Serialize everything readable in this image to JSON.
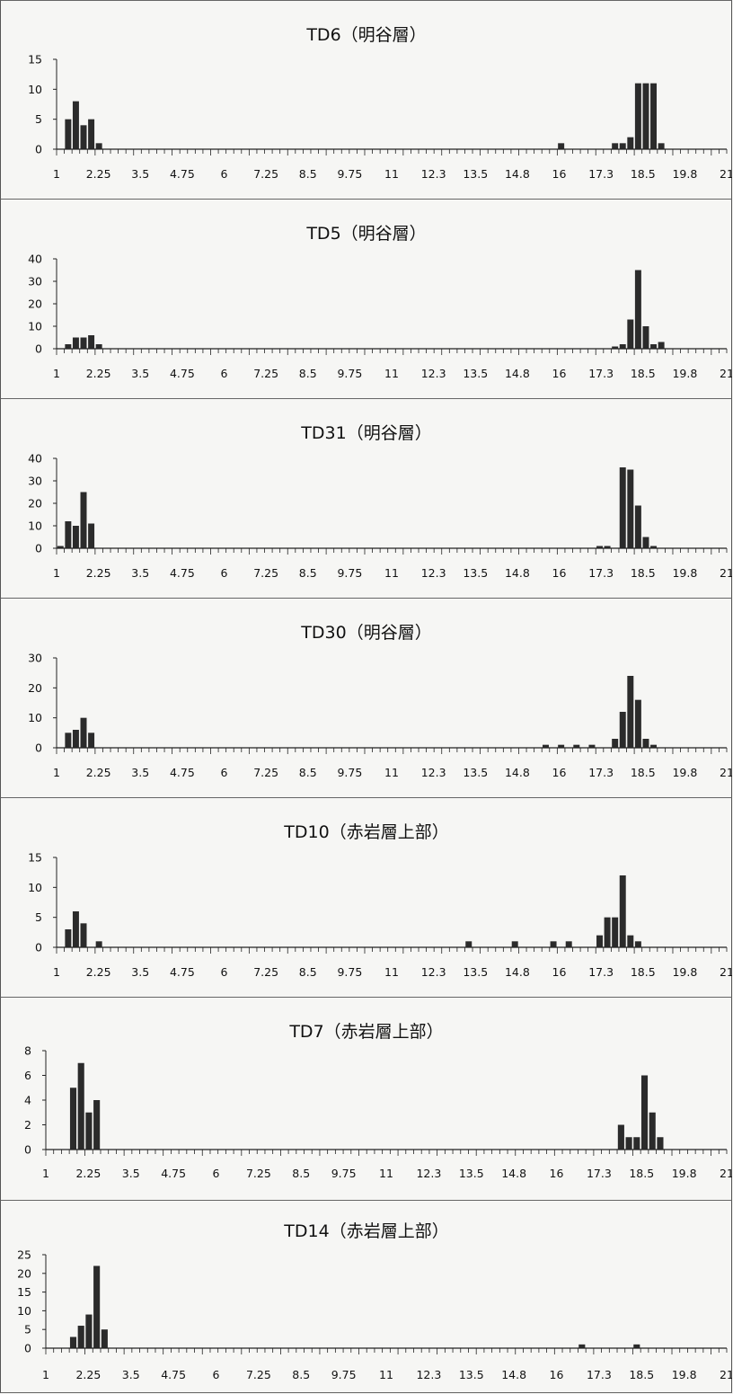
{
  "x_tick_labels": [
    "1",
    "2.25",
    "3.5",
    "4.75",
    "6",
    "7.25",
    "8.5",
    "9.75",
    "11",
    "12.3",
    "13.5",
    "14.8",
    "16",
    "17.3",
    "18.5",
    "19.8",
    "21"
  ],
  "colors": {
    "bar": "#2b2b2b",
    "axis": "#222222",
    "background": "#f6f6f4"
  },
  "chart_data": [
    {
      "type": "bar",
      "title": "TD6（明谷層）",
      "ylim": [
        0,
        15
      ],
      "yticks": [
        0,
        5,
        10,
        15
      ],
      "bin_start": 1,
      "bin_width": 0.25,
      "values": [
        0,
        5,
        8,
        4,
        5,
        1,
        0,
        0,
        0,
        0,
        0,
        0,
        0,
        0,
        0,
        0,
        0,
        0,
        0,
        0,
        0,
        0,
        0,
        0,
        0,
        0,
        0,
        0,
        0,
        0,
        0,
        0,
        0,
        0,
        0,
        0,
        0,
        0,
        0,
        0,
        0,
        0,
        0,
        0,
        0,
        0,
        0,
        0,
        0,
        0,
        0,
        0,
        0,
        0,
        0,
        0,
        0,
        0,
        0,
        0,
        0,
        0,
        0,
        0,
        0,
        1,
        0,
        0,
        0,
        0,
        0,
        0,
        1,
        1,
        2,
        11,
        11,
        11,
        1,
        0,
        0,
        0,
        0,
        0,
        0,
        0,
        0
      ]
    },
    {
      "type": "bar",
      "title": "TD5（明谷層）",
      "ylim": [
        0,
        40
      ],
      "yticks": [
        0,
        10,
        20,
        30,
        40
      ],
      "bin_start": 1,
      "bin_width": 0.25,
      "values": [
        0,
        2,
        5,
        5,
        6,
        2,
        0,
        0,
        0,
        0,
        0,
        0,
        0,
        0,
        0,
        0,
        0,
        0,
        0,
        0,
        0,
        0,
        0,
        0,
        0,
        0,
        0,
        0,
        0,
        0,
        0,
        0,
        0,
        0,
        0,
        0,
        0,
        0,
        0,
        0,
        0,
        0,
        0,
        0,
        0,
        0,
        0,
        0,
        0,
        0,
        0,
        0,
        0,
        0,
        0,
        0,
        0,
        0,
        0,
        0,
        0,
        0,
        0,
        0,
        0,
        0,
        0,
        0,
        0,
        0,
        0,
        0,
        1,
        2,
        13,
        35,
        10,
        2,
        3,
        0,
        0,
        0,
        0,
        0,
        0,
        0,
        0
      ]
    },
    {
      "type": "bar",
      "title": "TD31（明谷層）",
      "ylim": [
        0,
        40
      ],
      "yticks": [
        0,
        10,
        20,
        30,
        40
      ],
      "bin_start": 1,
      "bin_width": 0.25,
      "values": [
        1,
        12,
        10,
        25,
        11,
        0,
        0,
        0,
        0,
        0,
        0,
        0,
        0,
        0,
        0,
        0,
        0,
        0,
        0,
        0,
        0,
        0,
        0,
        0,
        0,
        0,
        0,
        0,
        0,
        0,
        0,
        0,
        0,
        0,
        0,
        0,
        0,
        0,
        0,
        0,
        0,
        0,
        0,
        0,
        0,
        0,
        0,
        0,
        0,
        0,
        0,
        0,
        0,
        0,
        0,
        0,
        0,
        0,
        0,
        0,
        0,
        0,
        0,
        0,
        0,
        0,
        0,
        0,
        0,
        0,
        1,
        1,
        0,
        36,
        35,
        19,
        5,
        1,
        0,
        0,
        0,
        0,
        0,
        0,
        0,
        0,
        0
      ]
    },
    {
      "type": "bar",
      "title": "TD30（明谷層）",
      "ylim": [
        0,
        30
      ],
      "yticks": [
        0,
        10,
        20,
        30
      ],
      "bin_start": 1,
      "bin_width": 0.25,
      "values": [
        0,
        5,
        6,
        10,
        5,
        0,
        0,
        0,
        0,
        0,
        0,
        0,
        0,
        0,
        0,
        0,
        0,
        0,
        0,
        0,
        0,
        0,
        0,
        0,
        0,
        0,
        0,
        0,
        0,
        0,
        0,
        0,
        0,
        0,
        0,
        0,
        0,
        0,
        0,
        0,
        0,
        0,
        0,
        0,
        0,
        0,
        0,
        0,
        0,
        0,
        0,
        0,
        0,
        0,
        0,
        0,
        0,
        0,
        0,
        0,
        0,
        0,
        0,
        1,
        0,
        1,
        0,
        1,
        0,
        1,
        0,
        0,
        3,
        12,
        24,
        16,
        3,
        1,
        0,
        0,
        0,
        0,
        0,
        0,
        0,
        0,
        0
      ]
    },
    {
      "type": "bar",
      "title": "TD10（赤岩層上部）",
      "ylim": [
        0,
        15
      ],
      "yticks": [
        0,
        5,
        10,
        15
      ],
      "bin_start": 1,
      "bin_width": 0.25,
      "values": [
        0,
        3,
        6,
        4,
        0,
        1,
        0,
        0,
        0,
        0,
        0,
        0,
        0,
        0,
        0,
        0,
        0,
        0,
        0,
        0,
        0,
        0,
        0,
        0,
        0,
        0,
        0,
        0,
        0,
        0,
        0,
        0,
        0,
        0,
        0,
        0,
        0,
        0,
        0,
        0,
        0,
        0,
        0,
        0,
        0,
        0,
        0,
        0,
        0,
        0,
        0,
        0,
        0,
        1,
        0,
        0,
        0,
        0,
        0,
        1,
        0,
        0,
        0,
        0,
        1,
        0,
        1,
        0,
        0,
        0,
        2,
        5,
        5,
        12,
        2,
        1,
        0,
        0,
        0,
        0,
        0,
        0,
        0,
        0,
        0,
        0,
        0
      ]
    },
    {
      "type": "bar",
      "title": "TD7（赤岩層上部）",
      "ylim": [
        0,
        8
      ],
      "yticks": [
        0,
        2,
        4,
        6,
        8
      ],
      "bin_start": 1,
      "bin_width": 0.25,
      "values": [
        0,
        0,
        0,
        5,
        7,
        3,
        4,
        0,
        0,
        0,
        0,
        0,
        0,
        0,
        0,
        0,
        0,
        0,
        0,
        0,
        0,
        0,
        0,
        0,
        0,
        0,
        0,
        0,
        0,
        0,
        0,
        0,
        0,
        0,
        0,
        0,
        0,
        0,
        0,
        0,
        0,
        0,
        0,
        0,
        0,
        0,
        0,
        0,
        0,
        0,
        0,
        0,
        0,
        0,
        0,
        0,
        0,
        0,
        0,
        0,
        0,
        0,
        0,
        0,
        0,
        0,
        0,
        0,
        0,
        0,
        0,
        0,
        0,
        2,
        1,
        1,
        6,
        3,
        1,
        0,
        0,
        0,
        0,
        0,
        0,
        0,
        0
      ]
    },
    {
      "type": "bar",
      "title": "TD14（赤岩層上部）",
      "ylim": [
        0,
        25
      ],
      "yticks": [
        0,
        5,
        10,
        15,
        20,
        25
      ],
      "bin_start": 1,
      "bin_width": 0.25,
      "values": [
        0,
        0,
        0,
        3,
        6,
        9,
        22,
        5,
        0,
        0,
        0,
        0,
        0,
        0,
        0,
        0,
        0,
        0,
        0,
        0,
        0,
        0,
        0,
        0,
        0,
        0,
        0,
        0,
        0,
        0,
        0,
        0,
        0,
        0,
        0,
        0,
        0,
        0,
        0,
        0,
        0,
        0,
        0,
        0,
        0,
        0,
        0,
        0,
        0,
        0,
        0,
        0,
        0,
        0,
        0,
        0,
        0,
        0,
        0,
        0,
        0,
        0,
        0,
        0,
        0,
        0,
        0,
        0,
        1,
        0,
        0,
        0,
        0,
        0,
        0,
        1,
        0,
        0,
        0,
        0,
        0,
        0,
        0,
        0,
        0,
        0,
        0
      ]
    }
  ]
}
